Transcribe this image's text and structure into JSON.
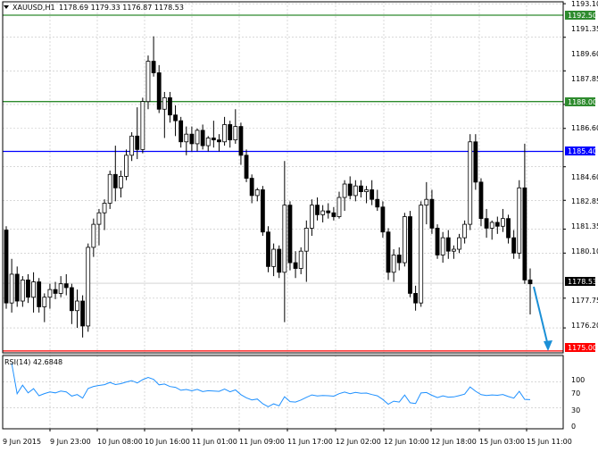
{
  "header": {
    "symbol": "XAUUSD,H1",
    "ohlc": "1178.69 1179.33 1176.87 1178.53"
  },
  "rsi": {
    "label": "RSI(14) 42.6848",
    "ticks": [
      "100",
      "70",
      "30",
      "0"
    ]
  },
  "price_axis": {
    "ticks": [
      "1193.10",
      "1191.35",
      "1189.60",
      "1187.85",
      "1186.60",
      "1184.60",
      "1182.85",
      "1181.35",
      "1180.10",
      "1177.75",
      "1176.20"
    ],
    "current_price": "1178.53"
  },
  "levels": [
    {
      "label": "1192.50",
      "color": "#2e8b2e"
    },
    {
      "label": "1188.00",
      "color": "#2e8b2e"
    },
    {
      "label": "1185.40",
      "color": "#0000ff"
    },
    {
      "label": "1175.00",
      "color": "#ff0000"
    }
  ],
  "time_axis": {
    "labels": [
      "9 Jun 2015",
      "9 Jun 23:00",
      "10 Jun 08:00",
      "10 Jun 16:00",
      "11 Jun 01:00",
      "11 Jun 09:00",
      "11 Jun 17:00",
      "12 Jun 02:00",
      "12 Jun 10:00",
      "12 Jun 18:00",
      "15 Jun 03:00",
      "15 Jun 11:00"
    ]
  },
  "chart_data": {
    "type": "candlestick",
    "symbol": "XAUUSD",
    "timeframe": "H1",
    "ylim": [
      1174.9,
      1193.2
    ],
    "candles": [
      [
        1181.3,
        1181.5,
        1177.2,
        1177.5
      ],
      [
        1177.5,
        1179.8,
        1177.0,
        1179.0
      ],
      [
        1179.0,
        1179.4,
        1177.3,
        1177.6
      ],
      [
        1177.6,
        1178.9,
        1177.3,
        1178.7
      ],
      [
        1178.7,
        1179.0,
        1177.5,
        1177.8
      ],
      [
        1177.8,
        1179.1,
        1177.0,
        1178.6
      ],
      [
        1178.6,
        1178.8,
        1177.0,
        1177.3
      ],
      [
        1177.3,
        1178.0,
        1176.5,
        1177.8
      ],
      [
        1177.8,
        1178.5,
        1177.2,
        1178.2
      ],
      [
        1178.2,
        1178.6,
        1177.7,
        1178.0
      ],
      [
        1178.0,
        1178.9,
        1177.8,
        1178.5
      ],
      [
        1178.5,
        1179.0,
        1177.9,
        1178.3
      ],
      [
        1178.3,
        1178.5,
        1176.4,
        1177.1
      ],
      [
        1177.1,
        1178.2,
        1176.2,
        1177.6
      ],
      [
        1177.6,
        1177.9,
        1175.7,
        1176.3
      ],
      [
        1176.3,
        1180.6,
        1176.0,
        1180.4
      ],
      [
        1180.4,
        1181.9,
        1179.9,
        1181.6
      ],
      [
        1181.6,
        1182.4,
        1180.5,
        1182.2
      ],
      [
        1182.2,
        1182.9,
        1181.3,
        1182.7
      ],
      [
        1182.7,
        1184.4,
        1182.4,
        1184.2
      ],
      [
        1184.2,
        1185.7,
        1182.8,
        1183.5
      ],
      [
        1183.5,
        1184.4,
        1183.0,
        1184.1
      ],
      [
        1184.1,
        1185.5,
        1183.9,
        1185.2
      ],
      [
        1185.2,
        1186.4,
        1184.9,
        1186.2
      ],
      [
        1186.2,
        1187.7,
        1185.0,
        1185.5
      ],
      [
        1185.5,
        1188.2,
        1185.3,
        1188.0
      ],
      [
        1188.0,
        1190.4,
        1187.6,
        1190.1
      ],
      [
        1190.1,
        1191.4,
        1189.3,
        1189.5
      ],
      [
        1189.5,
        1189.9,
        1187.4,
        1187.6
      ],
      [
        1187.6,
        1188.5,
        1186.1,
        1188.2
      ],
      [
        1188.2,
        1188.5,
        1186.9,
        1187.3
      ],
      [
        1187.3,
        1187.8,
        1186.2,
        1187.0
      ],
      [
        1187.0,
        1187.2,
        1185.6,
        1185.9
      ],
      [
        1185.9,
        1186.7,
        1185.2,
        1186.3
      ],
      [
        1186.3,
        1186.7,
        1185.4,
        1185.8
      ],
      [
        1185.8,
        1186.6,
        1185.4,
        1186.5
      ],
      [
        1186.5,
        1186.8,
        1185.5,
        1185.7
      ],
      [
        1185.7,
        1186.2,
        1185.4,
        1186.1
      ],
      [
        1186.1,
        1187.0,
        1185.6,
        1186.0
      ],
      [
        1186.0,
        1186.3,
        1185.4,
        1185.9
      ],
      [
        1185.9,
        1187.2,
        1185.7,
        1186.8
      ],
      [
        1186.8,
        1187.0,
        1185.6,
        1186.0
      ],
      [
        1186.0,
        1187.6,
        1185.8,
        1186.7
      ],
      [
        1186.7,
        1186.9,
        1184.7,
        1185.2
      ],
      [
        1185.2,
        1185.5,
        1183.8,
        1184.0
      ],
      [
        1184.0,
        1184.2,
        1182.7,
        1183.1
      ],
      [
        1183.1,
        1183.5,
        1182.8,
        1183.4
      ],
      [
        1183.4,
        1183.6,
        1181.0,
        1181.2
      ],
      [
        1181.2,
        1181.5,
        1179.1,
        1179.4
      ],
      [
        1179.4,
        1180.6,
        1178.9,
        1180.3
      ],
      [
        1180.3,
        1180.5,
        1178.8,
        1179.1
      ],
      [
        1179.1,
        1184.9,
        1176.5,
        1182.6
      ],
      [
        1182.6,
        1182.8,
        1179.2,
        1179.6
      ],
      [
        1179.6,
        1180.2,
        1178.8,
        1179.3
      ],
      [
        1179.3,
        1180.4,
        1179.0,
        1180.2
      ],
      [
        1180.2,
        1181.8,
        1178.6,
        1181.4
      ],
      [
        1181.4,
        1182.9,
        1181.0,
        1182.6
      ],
      [
        1182.6,
        1183.0,
        1181.8,
        1182.1
      ],
      [
        1182.1,
        1182.6,
        1181.7,
        1182.3
      ],
      [
        1182.3,
        1182.7,
        1181.9,
        1182.2
      ],
      [
        1182.2,
        1182.5,
        1181.8,
        1182.0
      ],
      [
        1182.0,
        1183.3,
        1181.9,
        1183.0
      ],
      [
        1183.0,
        1183.9,
        1182.3,
        1183.7
      ],
      [
        1183.7,
        1184.1,
        1182.9,
        1183.1
      ],
      [
        1183.1,
        1183.9,
        1182.8,
        1183.6
      ],
      [
        1183.6,
        1183.9,
        1183.0,
        1183.3
      ],
      [
        1183.3,
        1183.6,
        1182.7,
        1183.4
      ],
      [
        1183.4,
        1183.9,
        1182.6,
        1182.9
      ],
      [
        1182.9,
        1183.4,
        1182.3,
        1182.5
      ],
      [
        1182.5,
        1182.8,
        1180.9,
        1181.2
      ],
      [
        1181.2,
        1181.4,
        1178.7,
        1179.1
      ],
      [
        1179.1,
        1180.3,
        1178.6,
        1180.0
      ],
      [
        1180.0,
        1180.4,
        1179.2,
        1179.6
      ],
      [
        1179.6,
        1182.2,
        1179.4,
        1182.0
      ],
      [
        1182.0,
        1182.3,
        1177.8,
        1178.0
      ],
      [
        1178.0,
        1178.4,
        1177.1,
        1177.5
      ],
      [
        1177.5,
        1182.8,
        1177.3,
        1182.6
      ],
      [
        1182.6,
        1183.8,
        1181.6,
        1182.9
      ],
      [
        1182.9,
        1183.4,
        1181.1,
        1181.4
      ],
      [
        1181.4,
        1181.6,
        1179.8,
        1180.0
      ],
      [
        1180.0,
        1181.2,
        1179.6,
        1180.9
      ],
      [
        1180.9,
        1181.3,
        1179.8,
        1180.2
      ],
      [
        1180.2,
        1180.5,
        1179.8,
        1180.3
      ],
      [
        1180.3,
        1181.1,
        1180.1,
        1180.9
      ],
      [
        1180.9,
        1181.8,
        1180.6,
        1181.6
      ],
      [
        1181.6,
        1186.3,
        1181.3,
        1185.9
      ],
      [
        1185.9,
        1186.3,
        1183.4,
        1183.8
      ],
      [
        1183.8,
        1184.0,
        1181.5,
        1181.9
      ],
      [
        1181.9,
        1182.4,
        1180.9,
        1181.4
      ],
      [
        1181.4,
        1181.8,
        1180.8,
        1181.7
      ],
      [
        1181.7,
        1182.0,
        1181.1,
        1181.5
      ],
      [
        1181.5,
        1182.4,
        1181.2,
        1181.9
      ],
      [
        1181.9,
        1182.1,
        1180.6,
        1180.9
      ],
      [
        1180.9,
        1181.3,
        1179.8,
        1180.1
      ],
      [
        1180.1,
        1183.9,
        1179.8,
        1183.5
      ],
      [
        1183.5,
        1185.8,
        1178.5,
        1178.7
      ],
      [
        1178.7,
        1179.3,
        1176.9,
        1178.5
      ]
    ]
  }
}
